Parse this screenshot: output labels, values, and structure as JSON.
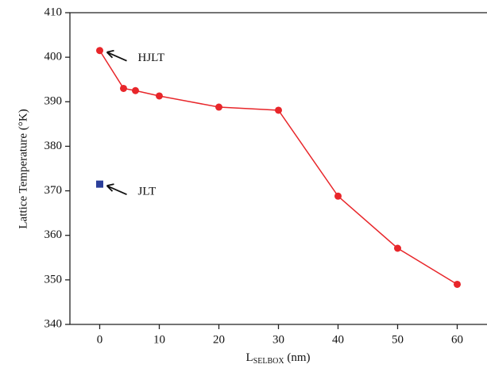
{
  "chart_data": {
    "type": "line",
    "x_label": {
      "main": "L",
      "sub": "SELBOX",
      "unit": " (nm)"
    },
    "y_label": "Lattice Temperature (°K)",
    "series": [
      {
        "name": "HJLT",
        "color": "#e8262a",
        "marker": "circle",
        "line": true,
        "x": [
          0,
          4,
          6,
          10,
          20,
          30,
          40,
          50,
          60
        ],
        "values": [
          401.5,
          393,
          392.5,
          391.3,
          388.8,
          388.1,
          368.8,
          357.1,
          349
        ]
      },
      {
        "name": "JLT",
        "color": "#2b3f9a",
        "marker": "square",
        "line": false,
        "x": [
          0
        ],
        "values": [
          371.5
        ]
      }
    ],
    "xlim": [
      -5,
      65
    ],
    "xticks": [
      0,
      10,
      20,
      30,
      40,
      50,
      60
    ],
    "ylim": [
      340,
      410
    ],
    "yticks": [
      340,
      350,
      360,
      370,
      380,
      390,
      400,
      410
    ]
  }
}
